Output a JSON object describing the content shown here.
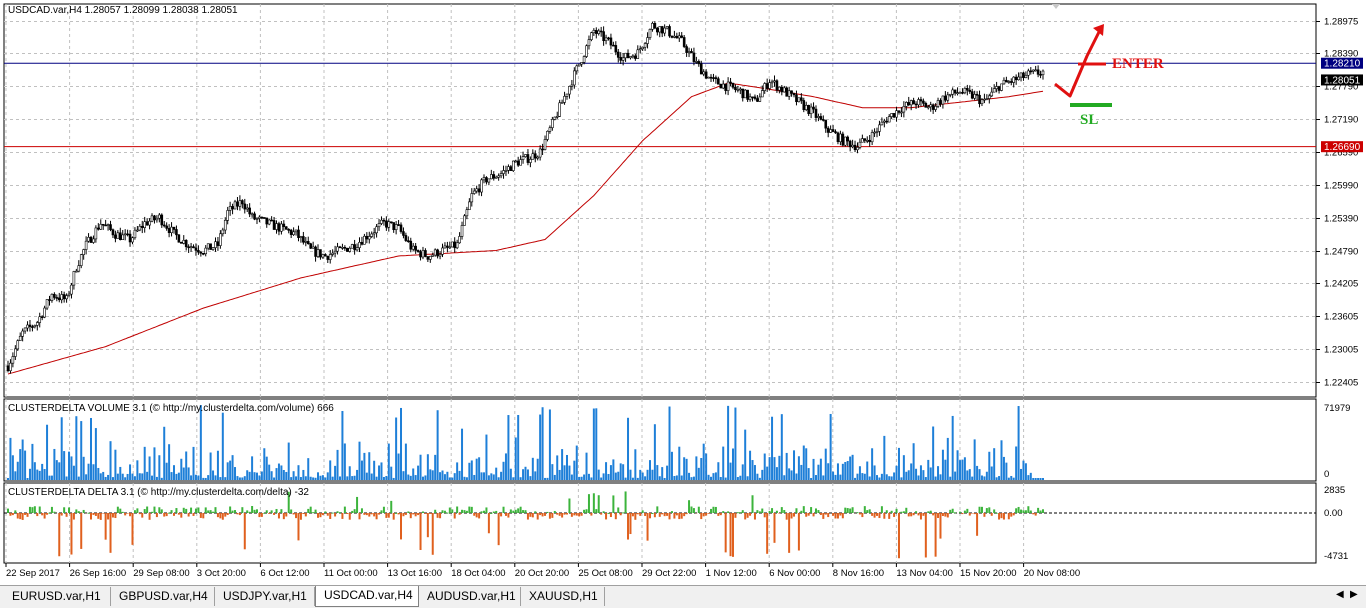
{
  "window": {
    "symbol_header": "USDCAD.var,H4  1.28057 1.28099 1.28038 1.28051"
  },
  "price_axis": {
    "ticks": [
      "1.28975",
      "1.28390",
      "1.27790",
      "1.27190",
      "1.26590",
      "1.25990",
      "1.25390",
      "1.24790",
      "1.24205",
      "1.23605",
      "1.23005",
      "1.22405"
    ],
    "current_price_label": "1.28051",
    "blue_line_label": "1.28210",
    "red_line_label": "1.26690"
  },
  "time_axis": {
    "labels": [
      "22 Sep 2017",
      "26 Sep 16:00",
      "29 Sep 08:00",
      "3 Oct 20:00",
      "6 Oct 12:00",
      "11 Oct 00:00",
      "13 Oct 16:00",
      "18 Oct 04:00",
      "20 Oct 20:00",
      "25 Oct 08:00",
      "29 Oct 22:00",
      "1 Nov 12:00",
      "6 Nov 00:00",
      "8 Nov 16:00",
      "13 Nov 04:00",
      "15 Nov 20:00",
      "20 Nov 08:00"
    ]
  },
  "annotations": {
    "enter_label": "ENTER",
    "sl_label": "SL"
  },
  "volume_panel": {
    "title": "CLUSTERDELTA VOLUME 3.1 (© http://my.clusterdelta.com/volume) 666",
    "max_label": "71979",
    "min_label": "0"
  },
  "delta_panel": {
    "title": "CLUSTERDELTA DELTA 3.1 (© http://my.clusterdelta.com/delta) -32",
    "max_label": "2835",
    "zero_label": "0.00",
    "min_label": "-4731"
  },
  "tabs": [
    {
      "label": "EURUSD.var,H1",
      "active": false
    },
    {
      "label": "GBPUSD.var,H4",
      "active": false
    },
    {
      "label": "USDJPY.var,H1",
      "active": false
    },
    {
      "label": "USDCAD.var,H4",
      "active": true
    },
    {
      "label": "AUDUSD.var,H1",
      "active": false
    },
    {
      "label": "XAUUSD,H1",
      "active": false
    }
  ],
  "colors": {
    "up_candle": "#000000",
    "ma_line": "#c00000",
    "blue_level": "#000080",
    "red_level": "#cc0000",
    "volume_bar": "#1e7fd8",
    "delta_positive": "#3cb43c",
    "delta_negative": "#e0601e",
    "enter_color": "#e01010",
    "sl_color": "#22aa22"
  },
  "chart_data": {
    "type": "candlestick",
    "symbol": "USDCAD.var",
    "timeframe": "H4",
    "last_ohlc": {
      "open": 1.28057,
      "high": 1.28099,
      "low": 1.28038,
      "close": 1.28051
    },
    "ylim": [
      1.2215,
      1.2927
    ],
    "levels": [
      {
        "price": 1.2821
      },
      {
        "price": 1.2669
      }
    ],
    "close_anchors": [
      [
        0,
        1.227
      ],
      [
        6,
        1.233
      ],
      [
        12,
        1.235
      ],
      [
        18,
        1.24
      ],
      [
        24,
        1.239
      ],
      [
        28,
        1.245
      ],
      [
        32,
        1.249
      ],
      [
        38,
        1.253
      ],
      [
        44,
        1.251
      ],
      [
        50,
        1.25
      ],
      [
        56,
        1.253
      ],
      [
        62,
        1.254
      ],
      [
        68,
        1.251
      ],
      [
        74,
        1.249
      ],
      [
        80,
        1.248
      ],
      [
        86,
        1.249
      ],
      [
        90,
        1.255
      ],
      [
        96,
        1.257
      ],
      [
        100,
        1.254
      ],
      [
        106,
        1.253
      ],
      [
        112,
        1.252
      ],
      [
        118,
        1.251
      ],
      [
        124,
        1.248
      ],
      [
        130,
        1.247
      ],
      [
        136,
        1.248
      ],
      [
        142,
        1.249
      ],
      [
        148,
        1.251
      ],
      [
        154,
        1.253
      ],
      [
        160,
        1.252
      ],
      [
        166,
        1.248
      ],
      [
        172,
        1.247
      ],
      [
        178,
        1.248
      ],
      [
        184,
        1.249
      ],
      [
        190,
        1.258
      ],
      [
        196,
        1.261
      ],
      [
        202,
        1.262
      ],
      [
        208,
        1.264
      ],
      [
        214,
        1.265
      ],
      [
        218,
        1.266
      ],
      [
        222,
        1.27
      ],
      [
        228,
        1.276
      ],
      [
        232,
        1.28
      ],
      [
        236,
        1.284
      ],
      [
        240,
        1.288
      ],
      [
        246,
        1.286
      ],
      [
        252,
        1.283
      ],
      [
        258,
        1.284
      ],
      [
        264,
        1.289
      ],
      [
        270,
        1.288
      ],
      [
        276,
        1.286
      ],
      [
        282,
        1.282
      ],
      [
        288,
        1.279
      ],
      [
        294,
        1.278
      ],
      [
        300,
        1.277
      ],
      [
        306,
        1.275
      ],
      [
        312,
        1.279
      ],
      [
        318,
        1.277
      ],
      [
        324,
        1.275
      ],
      [
        330,
        1.273
      ],
      [
        336,
        1.27
      ],
      [
        342,
        1.268
      ],
      [
        348,
        1.267
      ],
      [
        354,
        1.269
      ],
      [
        360,
        1.272
      ],
      [
        366,
        1.274
      ],
      [
        372,
        1.275
      ],
      [
        378,
        1.274
      ],
      [
        384,
        1.276
      ],
      [
        390,
        1.277
      ],
      [
        396,
        1.276
      ],
      [
        400,
        1.275
      ],
      [
        406,
        1.278
      ],
      [
        412,
        1.279
      ],
      [
        418,
        1.28
      ],
      [
        424,
        1.2805
      ]
    ],
    "ma_anchors": [
      [
        0,
        1.2255
      ],
      [
        40,
        1.2305
      ],
      [
        80,
        1.2375
      ],
      [
        120,
        1.243
      ],
      [
        160,
        1.247
      ],
      [
        200,
        1.248
      ],
      [
        220,
        1.25
      ],
      [
        240,
        1.258
      ],
      [
        260,
        1.268
      ],
      [
        280,
        1.276
      ],
      [
        295,
        1.2785
      ],
      [
        310,
        1.2775
      ],
      [
        330,
        1.276
      ],
      [
        350,
        1.274
      ],
      [
        370,
        1.274
      ],
      [
        390,
        1.275
      ],
      [
        410,
        1.276
      ],
      [
        424,
        1.277
      ]
    ]
  }
}
